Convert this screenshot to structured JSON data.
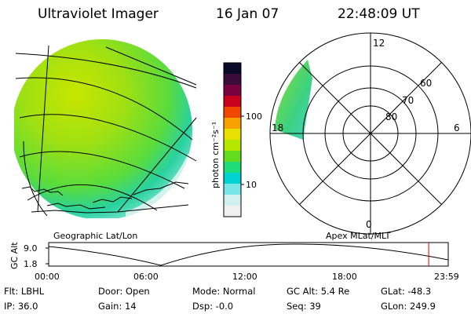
{
  "header": {
    "instrument": "Ultraviolet Imager",
    "date": "16 Jan 07",
    "time": "22:48:09 UT"
  },
  "colorbar": {
    "unit_label": "photon cm⁻²s⁻¹",
    "ticks": [
      "100",
      "10"
    ],
    "colors": [
      "#0a0a28",
      "#3a0a3a",
      "#7a0040",
      "#c8001e",
      "#f04600",
      "#f8a000",
      "#e8e000",
      "#b4e600",
      "#64dc1e",
      "#1edc78",
      "#00d2d2",
      "#78e6e6",
      "#d2f0f0",
      "#f0f0f0"
    ]
  },
  "polar": {
    "mlat_labels": [
      "60",
      "70",
      "80"
    ],
    "mlt_labels": {
      "top": "12",
      "left": "18",
      "right": "6",
      "bottom": "0"
    }
  },
  "labels": {
    "left_map": "Geographic Lat/Lon",
    "right_map": "Apex MLat/MLT"
  },
  "timeline": {
    "y_label": "GC Alt",
    "y_ticks": [
      "9.0",
      "1.8"
    ],
    "x_ticks": [
      "00:00",
      "06:00",
      "12:00",
      "18:00",
      "23:59"
    ],
    "current_time_fraction": 0.951
  },
  "status": {
    "filter": "Flt: LBHL",
    "ip": "IP: 36.0",
    "door": "Door: Open",
    "gain": "Gain: 14",
    "mode": "Mode: Normal",
    "dsp": "Dsp:   -0.0",
    "gc_alt": "GC Alt: 5.4 Re",
    "seq": "Seq: 39",
    "glat": "GLat: -48.3",
    "glon": "GLon: 249.9"
  }
}
